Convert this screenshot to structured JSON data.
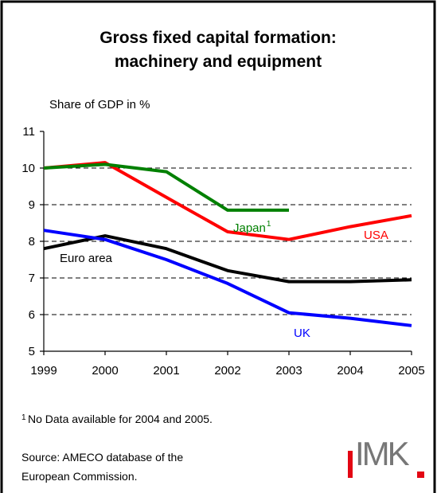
{
  "chart_data": {
    "type": "line",
    "title": [
      "Gross fixed capital formation:",
      "machinery and equipment"
    ],
    "y_label": "Share of GDP in %",
    "categories": [
      "1999",
      "2000",
      "2001",
      "2002",
      "2003",
      "2004",
      "2005"
    ],
    "series": [
      {
        "name": "USA",
        "color": "#ff0000",
        "values": [
          10.0,
          10.15,
          9.2,
          8.26,
          8.05,
          8.4,
          8.7
        ]
      },
      {
        "name": "Japan",
        "color": "#008000",
        "values": [
          10.0,
          10.1,
          9.9,
          8.85,
          8.85,
          null,
          null
        ]
      },
      {
        "name": "Euro area",
        "color": "#000000",
        "values": [
          7.8,
          8.15,
          7.8,
          7.2,
          6.9,
          6.9,
          6.95
        ]
      },
      {
        "name": "UK",
        "color": "#0000ff",
        "values": [
          8.3,
          8.05,
          7.5,
          6.85,
          6.05,
          5.9,
          5.7
        ]
      }
    ],
    "ylim": [
      5,
      11
    ],
    "yticks": [
      5,
      6,
      7,
      8,
      9,
      10,
      11
    ],
    "grid": true,
    "footnote": {
      "marker": "1",
      "text": "No Data available for 2004 and 2005."
    },
    "source": [
      "Source: AMECO database of the",
      "European Commission."
    ],
    "logo": "IMK"
  }
}
